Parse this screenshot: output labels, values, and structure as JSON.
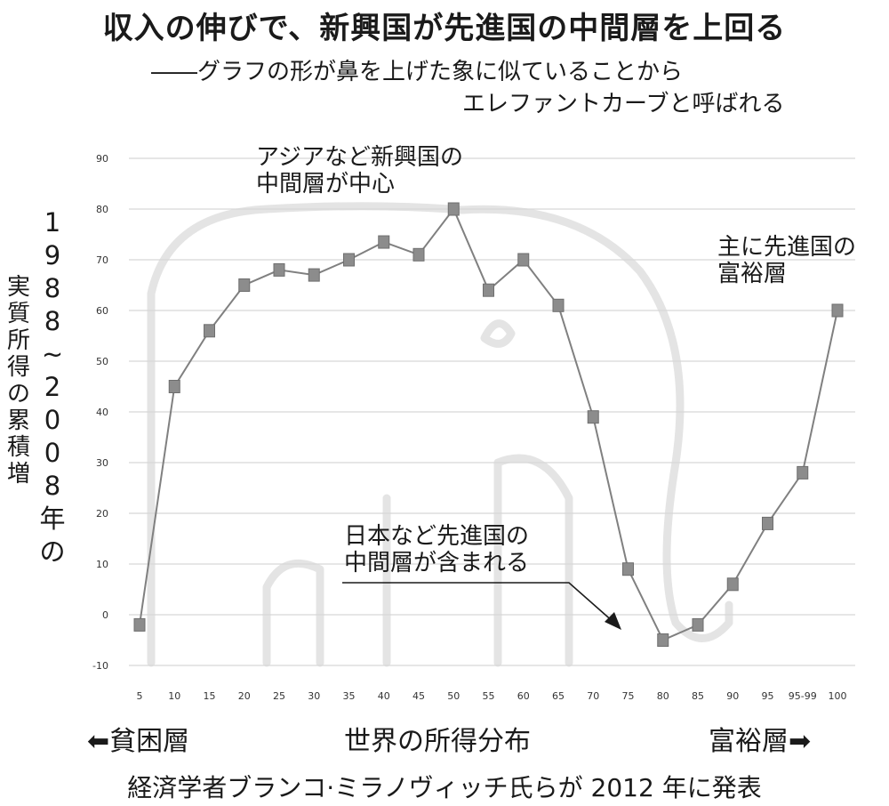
{
  "title": "収入の伸びで、新興国が先進国の中間層を上回る",
  "subtitle_line1": "――グラフの形が鼻を上げた象に似ていることから",
  "subtitle_line2": "エレファントカーブと呼ばれる",
  "ylabel_part1": "1988~2008年の",
  "ylabel_part2": "実質所得の累積増",
  "annotations": {
    "asia_line1": "アジアなど新興国の",
    "asia_line2": "中間層が中心",
    "rich_line1": "主に先進国の",
    "rich_line2": "富裕層",
    "japan_line1": "日本など先進国の",
    "japan_line2": "中間層が含まれる"
  },
  "xlabel": "世界の所得分布",
  "left_end_label": "⬅貧困層",
  "right_end_label": "富裕層➡",
  "source": "経済学者ブランコ·ミラノヴィッチ氏らが 2012 年に発表",
  "colors": {
    "line": "#808080",
    "marker": "#8c8c8c",
    "grid": "#d6d6d6",
    "elephant": "#e4e4e4",
    "text": "#1a1a1a"
  },
  "chart_data": {
    "type": "line",
    "categories": [
      "5",
      "10",
      "15",
      "20",
      "25",
      "30",
      "35",
      "40",
      "45",
      "50",
      "55",
      "60",
      "65",
      "70",
      "75",
      "80",
      "85",
      "90",
      "95",
      "95-99",
      "100"
    ],
    "values": [
      -2,
      45,
      56,
      65,
      68,
      67,
      70,
      73.5,
      71,
      80,
      64,
      70,
      61,
      39,
      9,
      -5,
      -2,
      6,
      18,
      28,
      60
    ],
    "yticks": [
      "90",
      "80",
      "70",
      "60",
      "50",
      "40",
      "30",
      "20",
      "10",
      "0",
      "-10"
    ],
    "ylim": [
      -10,
      90
    ],
    "grid": true,
    "title": "収入の伸びで、新興国が先進国の中間層を上回る",
    "xlabel": "世界の所得分布",
    "ylabel": "1988~2008年の実質所得の累積増"
  }
}
